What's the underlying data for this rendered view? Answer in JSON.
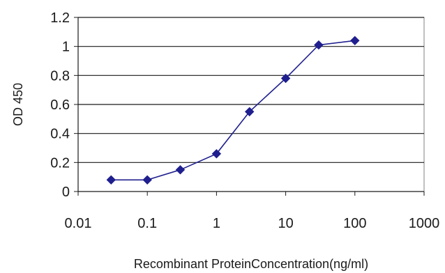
{
  "chart_data": {
    "type": "line",
    "title": "",
    "xlabel": "Recombinant ProteinConcentration(ng/ml)",
    "ylabel": "OD 450",
    "x_scale": "log",
    "xlim": [
      0.01,
      1000
    ],
    "ylim": [
      0,
      1.2
    ],
    "x_ticks": [
      0.01,
      0.1,
      1,
      10,
      100,
      1000
    ],
    "x_tick_labels": [
      "0.01",
      "0.1",
      "1",
      "10",
      "100",
      "1000"
    ],
    "y_ticks": [
      0,
      0.2,
      0.4,
      0.6,
      0.8,
      1,
      1.2
    ],
    "y_tick_labels": [
      "0",
      "0.2",
      "0.4",
      "0.6",
      "0.8",
      "1",
      "1.2"
    ],
    "grid": "horizontal",
    "legend": "none",
    "series": [
      {
        "color": "#1f1f8f",
        "marker": "diamond",
        "x": [
          0.03,
          0.1,
          0.3,
          1,
          3,
          10,
          30,
          100
        ],
        "y": [
          0.08,
          0.08,
          0.15,
          0.26,
          0.55,
          0.78,
          1.01,
          1.04
        ]
      }
    ]
  }
}
